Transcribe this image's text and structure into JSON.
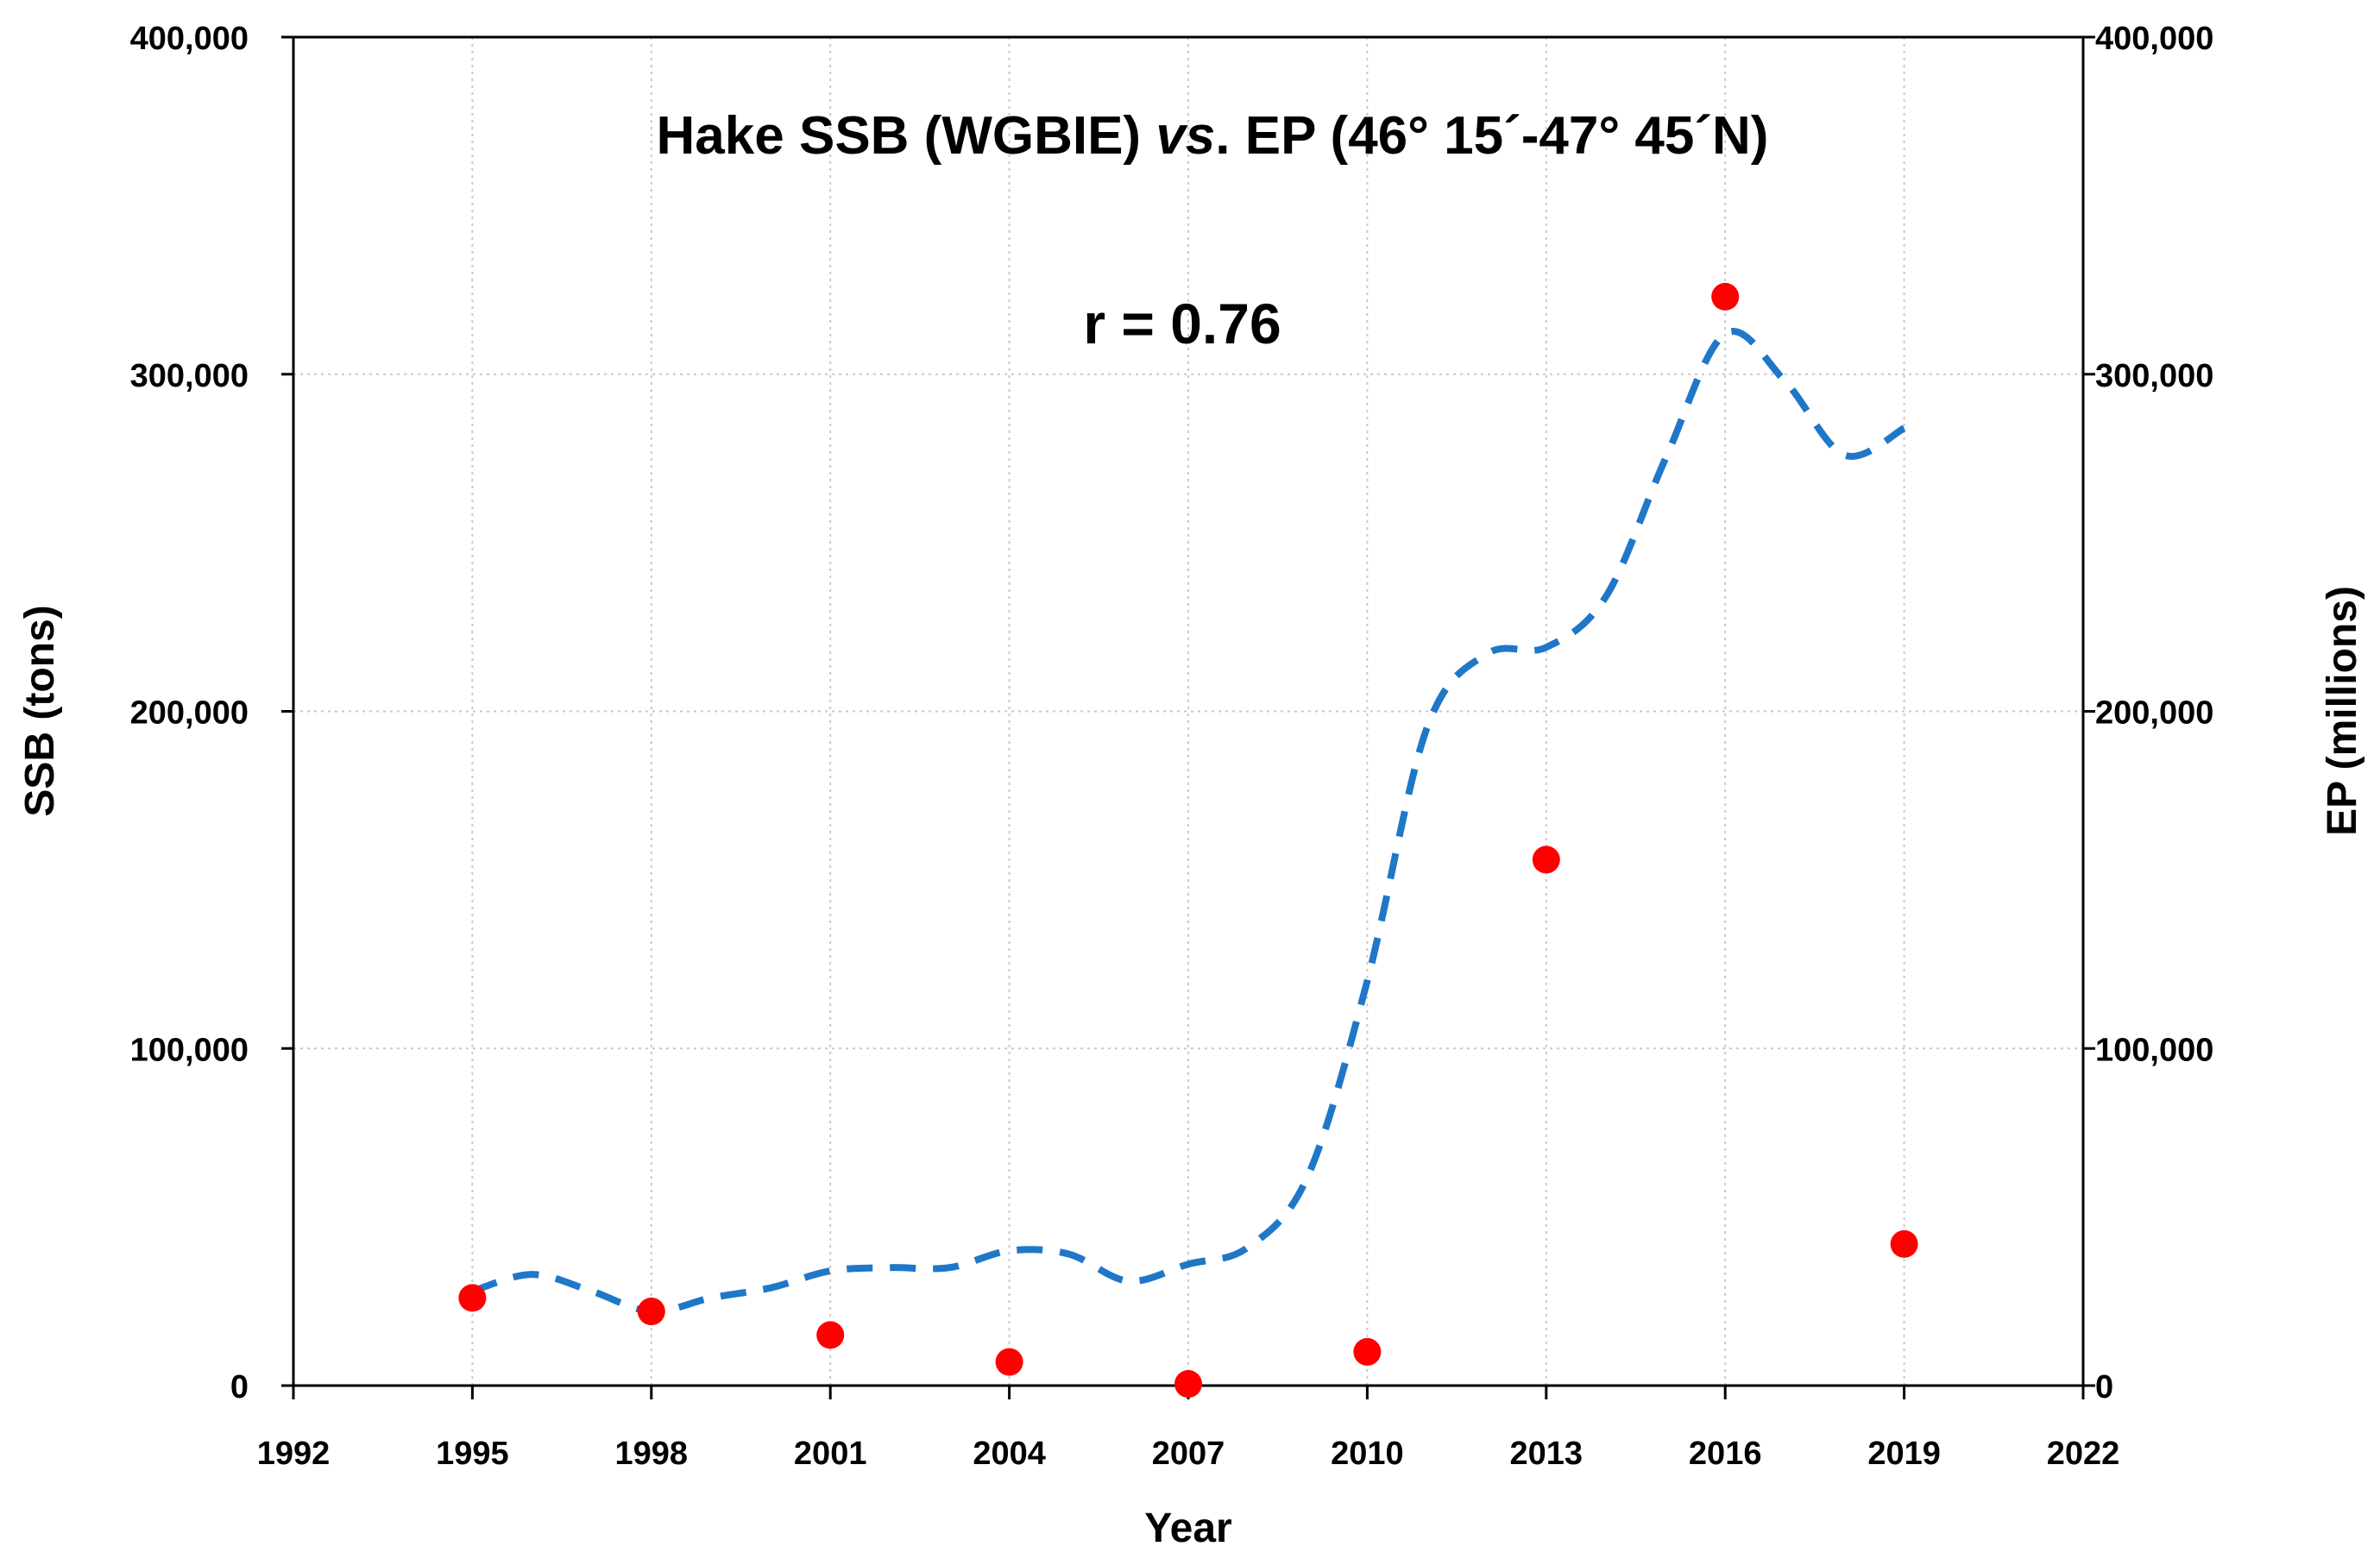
{
  "chart_data": {
    "type": "line",
    "title_parts": [
      "Hake SSB (WGBIE) ",
      "vs",
      ". EP (46° 15´-47° 45´N)"
    ],
    "annotation": "r = 0.76",
    "xlabel": "Year",
    "ylabel": "SSB (tons)",
    "y2label": "EP (millions)",
    "xlim": [
      1992,
      2022
    ],
    "xticks": [
      "1992",
      "1995",
      "1998",
      "2001",
      "2004",
      "2007",
      "2010",
      "2013",
      "2016",
      "2019",
      "2022"
    ],
    "ylim": [
      0,
      400000
    ],
    "yticks": [
      "0",
      "100,000",
      "200,000",
      "300,000",
      "400,000"
    ],
    "y2lim": [
      0,
      400000
    ],
    "y2ticks": [
      "0",
      "100,000",
      "200,000",
      "300,000",
      "400,000"
    ],
    "grid": true,
    "series": [
      {
        "name": "SSB",
        "axis": "left",
        "style": "dashed-line",
        "color": "#1f77c8",
        "x": [
          1995,
          1996,
          1997,
          1998,
          1999,
          2000,
          2001,
          2002,
          2003,
          2004,
          2005,
          2006,
          2007,
          2008,
          2009,
          2010,
          2011,
          2012,
          2013,
          2014,
          2015,
          2016,
          2017,
          2018,
          2019
        ],
        "values": [
          28000,
          33000,
          28000,
          22000,
          26000,
          29000,
          34000,
          35000,
          35000,
          40000,
          39000,
          31000,
          36000,
          41000,
          62000,
          120000,
          195000,
          217000,
          219000,
          234000,
          275000,
          312000,
          298000,
          276000,
          284000
        ]
      },
      {
        "name": "EP",
        "axis": "right",
        "style": "points",
        "color": "#ff0000",
        "x": [
          1995,
          1998,
          2001,
          2004,
          2007,
          2010,
          2013,
          2016,
          2019
        ],
        "values": [
          26000,
          22000,
          15000,
          7000,
          500,
          10000,
          156000,
          323000,
          42000
        ]
      }
    ]
  }
}
